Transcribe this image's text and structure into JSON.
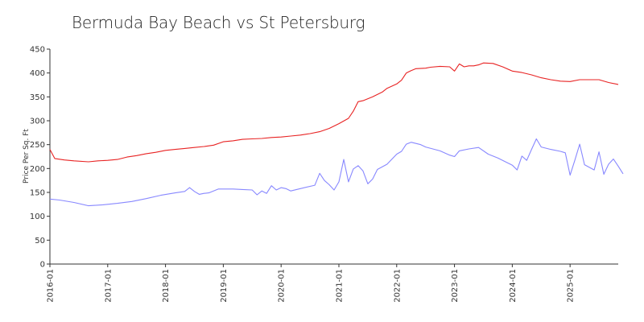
{
  "chart_data": {
    "type": "line",
    "title": "Bermuda Bay Beach vs St Petersburg",
    "xlabel": "",
    "ylabel": "Price Per Sq. Ft",
    "ylim": [
      0,
      450
    ],
    "yticks": [
      0,
      50,
      100,
      150,
      200,
      250,
      300,
      350,
      400,
      450
    ],
    "xlim": [
      "2016-01",
      "2025-11"
    ],
    "xticks": [
      "2016-01",
      "2017-01",
      "2018-01",
      "2019-01",
      "2020-01",
      "2021-01",
      "2022-01",
      "2023-01",
      "2024-01",
      "2025-01"
    ],
    "grid": false,
    "legend": "none",
    "series": [
      {
        "color": "#e82323",
        "points": [
          [
            "2016-01",
            240
          ],
          [
            "2016-02",
            221
          ],
          [
            "2016-04",
            218
          ],
          [
            "2016-06",
            216
          ],
          [
            "2016-09",
            214
          ],
          [
            "2016-11",
            216
          ],
          [
            "2017-01",
            217
          ],
          [
            "2017-03",
            219
          ],
          [
            "2017-05",
            224
          ],
          [
            "2017-07",
            227
          ],
          [
            "2017-09",
            231
          ],
          [
            "2017-11",
            234
          ],
          [
            "2018-01",
            238
          ],
          [
            "2018-03",
            240
          ],
          [
            "2018-05",
            242
          ],
          [
            "2018-07",
            244
          ],
          [
            "2018-09",
            246
          ],
          [
            "2018-11",
            249
          ],
          [
            "2019-01",
            256
          ],
          [
            "2019-03",
            258
          ],
          [
            "2019-05",
            261
          ],
          [
            "2019-07",
            262
          ],
          [
            "2019-09",
            263
          ],
          [
            "2019-11",
            265
          ],
          [
            "2020-01",
            266
          ],
          [
            "2020-03",
            268
          ],
          [
            "2020-05",
            270
          ],
          [
            "2020-07",
            273
          ],
          [
            "2020-09",
            277
          ],
          [
            "2020-11",
            284
          ],
          [
            "2021-01",
            294
          ],
          [
            "2021-03",
            305
          ],
          [
            "2021-04",
            320
          ],
          [
            "2021-05",
            340
          ],
          [
            "2021-06",
            342
          ],
          [
            "2021-08",
            350
          ],
          [
            "2021-10",
            360
          ],
          [
            "2021-11",
            368
          ],
          [
            "2022-01",
            377
          ],
          [
            "2022-02",
            385
          ],
          [
            "2022-03",
            400
          ],
          [
            "2022-04",
            405
          ],
          [
            "2022-05",
            409
          ],
          [
            "2022-07",
            410
          ],
          [
            "2022-08",
            412
          ],
          [
            "2022-10",
            414
          ],
          [
            "2022-12",
            413
          ],
          [
            "2023-01",
            404
          ],
          [
            "2023-02",
            419
          ],
          [
            "2023-03",
            413
          ],
          [
            "2023-04",
            415
          ],
          [
            "2023-05",
            415
          ],
          [
            "2023-06",
            417
          ],
          [
            "2023-07",
            421
          ],
          [
            "2023-09",
            420
          ],
          [
            "2023-11",
            413
          ],
          [
            "2024-01",
            404
          ],
          [
            "2024-03",
            401
          ],
          [
            "2024-05",
            396
          ],
          [
            "2024-07",
            390
          ],
          [
            "2024-09",
            386
          ],
          [
            "2024-11",
            383
          ],
          [
            "2025-01",
            382
          ],
          [
            "2025-03",
            386
          ],
          [
            "2025-05",
            386
          ],
          [
            "2025-07",
            386
          ],
          [
            "2025-09",
            380
          ],
          [
            "2025-11",
            376
          ]
        ]
      },
      {
        "color": "#8888ff",
        "points": [
          [
            "2016-01",
            136
          ],
          [
            "2016-03",
            134
          ],
          [
            "2016-06",
            129
          ],
          [
            "2016-09",
            122
          ],
          [
            "2016-12",
            124
          ],
          [
            "2017-03",
            127
          ],
          [
            "2017-06",
            131
          ],
          [
            "2017-09",
            137
          ],
          [
            "2017-12",
            144
          ],
          [
            "2018-03",
            149
          ],
          [
            "2018-05",
            152
          ],
          [
            "2018-06",
            160
          ],
          [
            "2018-07",
            152
          ],
          [
            "2018-08",
            146
          ],
          [
            "2018-09",
            148
          ],
          [
            "2018-10",
            149
          ],
          [
            "2018-12",
            157
          ],
          [
            "2019-01",
            157
          ],
          [
            "2019-03",
            157
          ],
          [
            "2019-05",
            156
          ],
          [
            "2019-07",
            155
          ],
          [
            "2019-08",
            145
          ],
          [
            "2019-09",
            153
          ],
          [
            "2019-10",
            148
          ],
          [
            "2019-11",
            164
          ],
          [
            "2019-12",
            155
          ],
          [
            "2020-01",
            160
          ],
          [
            "2020-02",
            158
          ],
          [
            "2020-03",
            153
          ],
          [
            "2020-05",
            158
          ],
          [
            "2020-08",
            165
          ],
          [
            "2020-09",
            190
          ],
          [
            "2020-10",
            175
          ],
          [
            "2020-11",
            166
          ],
          [
            "2020-12",
            155
          ],
          [
            "2021-01",
            172
          ],
          [
            "2021-02",
            219
          ],
          [
            "2021-03",
            172
          ],
          [
            "2021-04",
            199
          ],
          [
            "2021-05",
            206
          ],
          [
            "2021-06",
            195
          ],
          [
            "2021-07",
            168
          ],
          [
            "2021-08",
            178
          ],
          [
            "2021-09",
            198
          ],
          [
            "2021-11",
            209
          ],
          [
            "2022-01",
            230
          ],
          [
            "2022-02",
            236
          ],
          [
            "2022-03",
            251
          ],
          [
            "2022-04",
            255
          ],
          [
            "2022-06",
            250
          ],
          [
            "2022-07",
            245
          ],
          [
            "2022-10",
            237
          ],
          [
            "2022-12",
            228
          ],
          [
            "2023-01",
            225
          ],
          [
            "2023-02",
            237
          ],
          [
            "2023-04",
            241
          ],
          [
            "2023-06",
            244
          ],
          [
            "2023-08",
            230
          ],
          [
            "2023-10",
            222
          ],
          [
            "2023-12",
            212
          ],
          [
            "2024-01",
            207
          ],
          [
            "2024-02",
            197
          ],
          [
            "2024-03",
            226
          ],
          [
            "2024-04",
            217
          ],
          [
            "2024-05",
            240
          ],
          [
            "2024-06",
            262
          ],
          [
            "2024-07",
            245
          ],
          [
            "2024-09",
            240
          ],
          [
            "2024-11",
            236
          ],
          [
            "2024-12",
            233
          ],
          [
            "2025-01",
            186
          ],
          [
            "2025-02",
            218
          ],
          [
            "2025-03",
            251
          ],
          [
            "2025-04",
            208
          ],
          [
            "2025-06",
            197
          ],
          [
            "2025-07",
            235
          ],
          [
            "2025-08",
            188
          ],
          [
            "2025-09",
            209
          ],
          [
            "2025-10",
            220
          ],
          [
            "2025-11",
            205
          ],
          [
            "2025-12",
            189
          ]
        ]
      }
    ]
  }
}
